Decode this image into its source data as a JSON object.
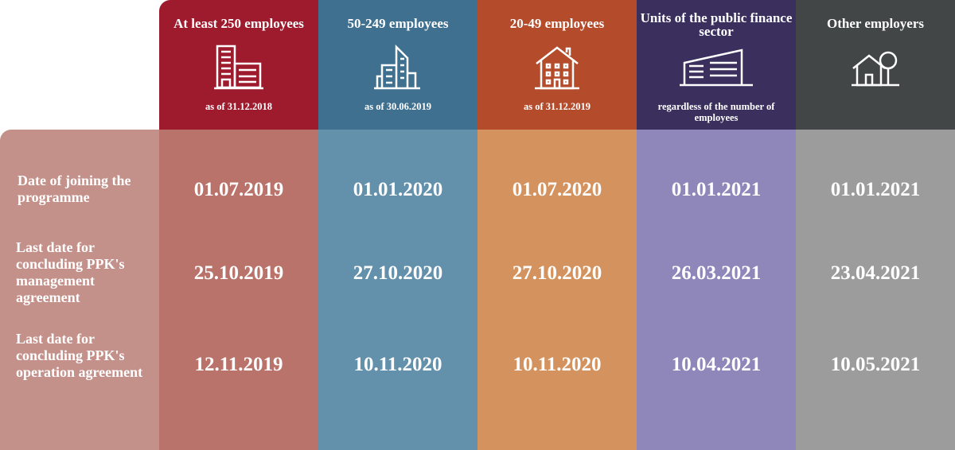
{
  "columns": [
    {
      "title": "At least 250 employees",
      "subtitle": "as of 31.12.2018",
      "icon": "office-building-icon",
      "header_color": "#9e1b2e",
      "body_color": "#b9736a"
    },
    {
      "title": "50-249 employees",
      "subtitle": "as of 30.06.2019",
      "icon": "skyscraper-icon",
      "header_color": "#3f7090",
      "body_color": "#6390ab"
    },
    {
      "title": "20-49 employees",
      "subtitle": "as of 31.12.2019",
      "icon": "house-building-icon",
      "header_color": "#b44c2c",
      "body_color": "#d4935e"
    },
    {
      "title": "Units of the public finance sector",
      "subtitle": "regardless of the number of employees",
      "icon": "government-building-icon",
      "header_color": "#3b2f5e",
      "body_color": "#8f86b9"
    },
    {
      "title": "Other employers",
      "subtitle": "",
      "icon": "house-tree-icon",
      "header_color": "#424646",
      "body_color": "#9c9c9c"
    }
  ],
  "rows": [
    {
      "label": "Date of joining the programme",
      "values": [
        "01.07.2019",
        "01.01.2020",
        "01.07.2020",
        "01.01.2021",
        "01.01.2021"
      ]
    },
    {
      "label": "Last date for concluding PPK's management agreement",
      "values": [
        "25.10.2019",
        "27.10.2020",
        "27.10.2020",
        "26.03.2021",
        "23.04.2021"
      ]
    },
    {
      "label": "Last date for concluding PPK's operation agreement",
      "values": [
        "12.11.2019",
        "10.11.2020",
        "10.11.2020",
        "10.04.2021",
        "10.05.2021"
      ]
    }
  ]
}
